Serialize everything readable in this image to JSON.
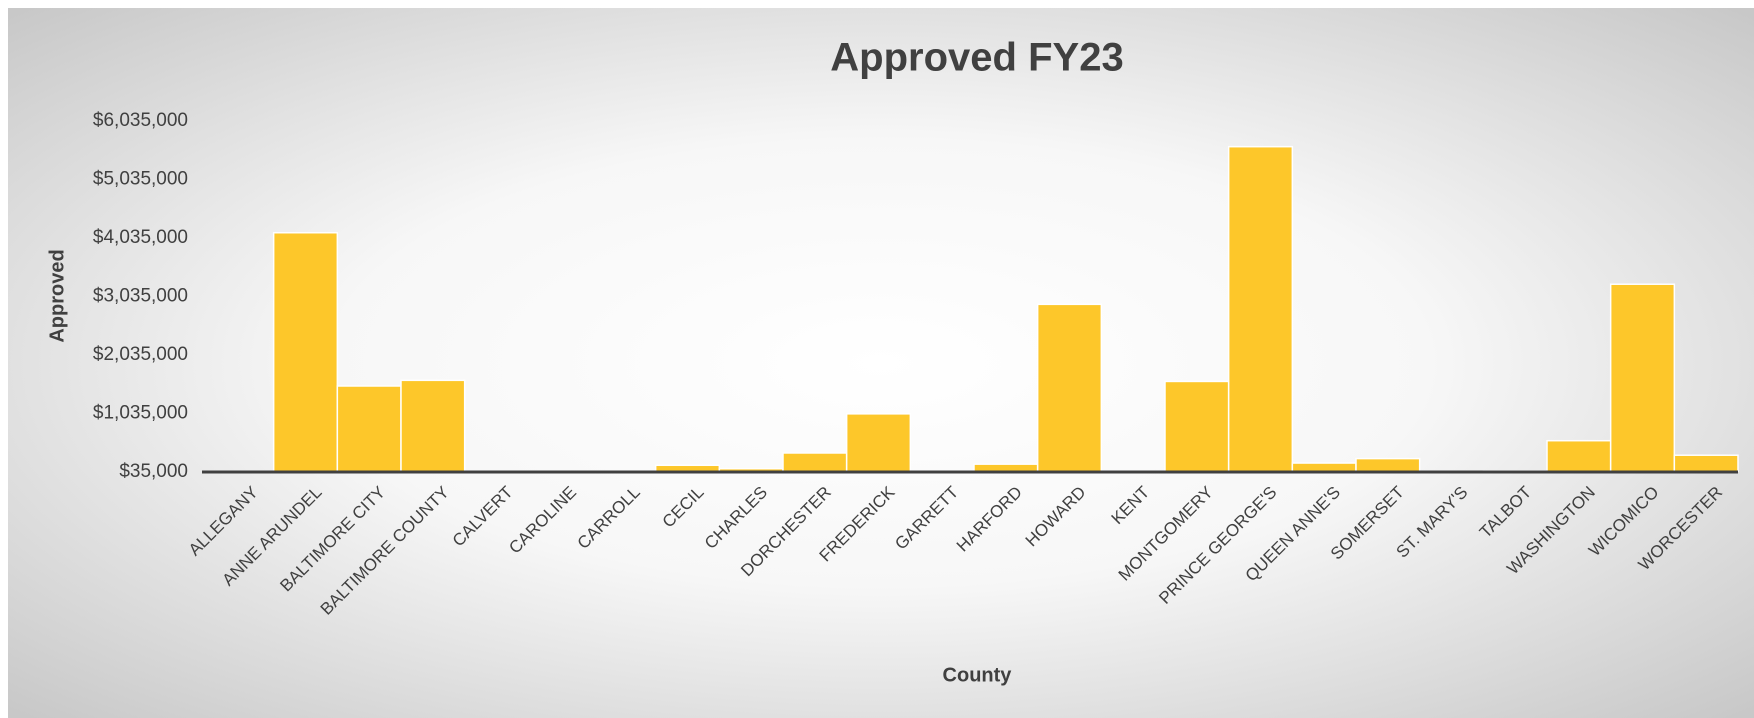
{
  "chart_data": {
    "type": "bar",
    "title": "Approved FY23",
    "x_label": "County",
    "y_label": "Approved",
    "categories": [
      "ALLEGANY",
      "ANNE ARUNDEL",
      "BALTIMORE CITY",
      "BALTIMORE COUNTY",
      "CALVERT",
      "CAROLINE",
      "CARROLL",
      "CECIL",
      "CHARLES",
      "DORCHESTER",
      "FREDERICK",
      "GARRETT",
      "HARFORD",
      "HOWARD",
      "KENT",
      "MONTGOMERY",
      "PRINCE GEORGE'S",
      "QUEEN ANNE'S",
      "SOMERSET",
      "ST. MARY'S",
      "TALBOT",
      "WASHINGTON",
      "WICOMICO",
      "WORCESTER"
    ],
    "values": [
      0,
      4125000,
      1505000,
      1602000,
      0,
      0,
      0,
      150000,
      92000,
      360000,
      1029000,
      0,
      169000,
      2901000,
      0,
      1583000,
      5596000,
      188000,
      264000,
      0,
      55000,
      570000,
      3245000,
      322000
    ],
    "color": "#fdc72a",
    "ylim": [
      35000,
      6035000
    ],
    "yticks": [
      {
        "value": 35000,
        "label": "$35,000"
      },
      {
        "value": 1035000,
        "label": "$1,035,000"
      },
      {
        "value": 2035000,
        "label": "$2,035,000"
      },
      {
        "value": 3035000,
        "label": "$3,035,000"
      },
      {
        "value": 4035000,
        "label": "$4,035,000"
      },
      {
        "value": 5035000,
        "label": "$5,035,000"
      },
      {
        "value": 6035000,
        "label": "$6,035,000"
      }
    ],
    "grid": false
  }
}
